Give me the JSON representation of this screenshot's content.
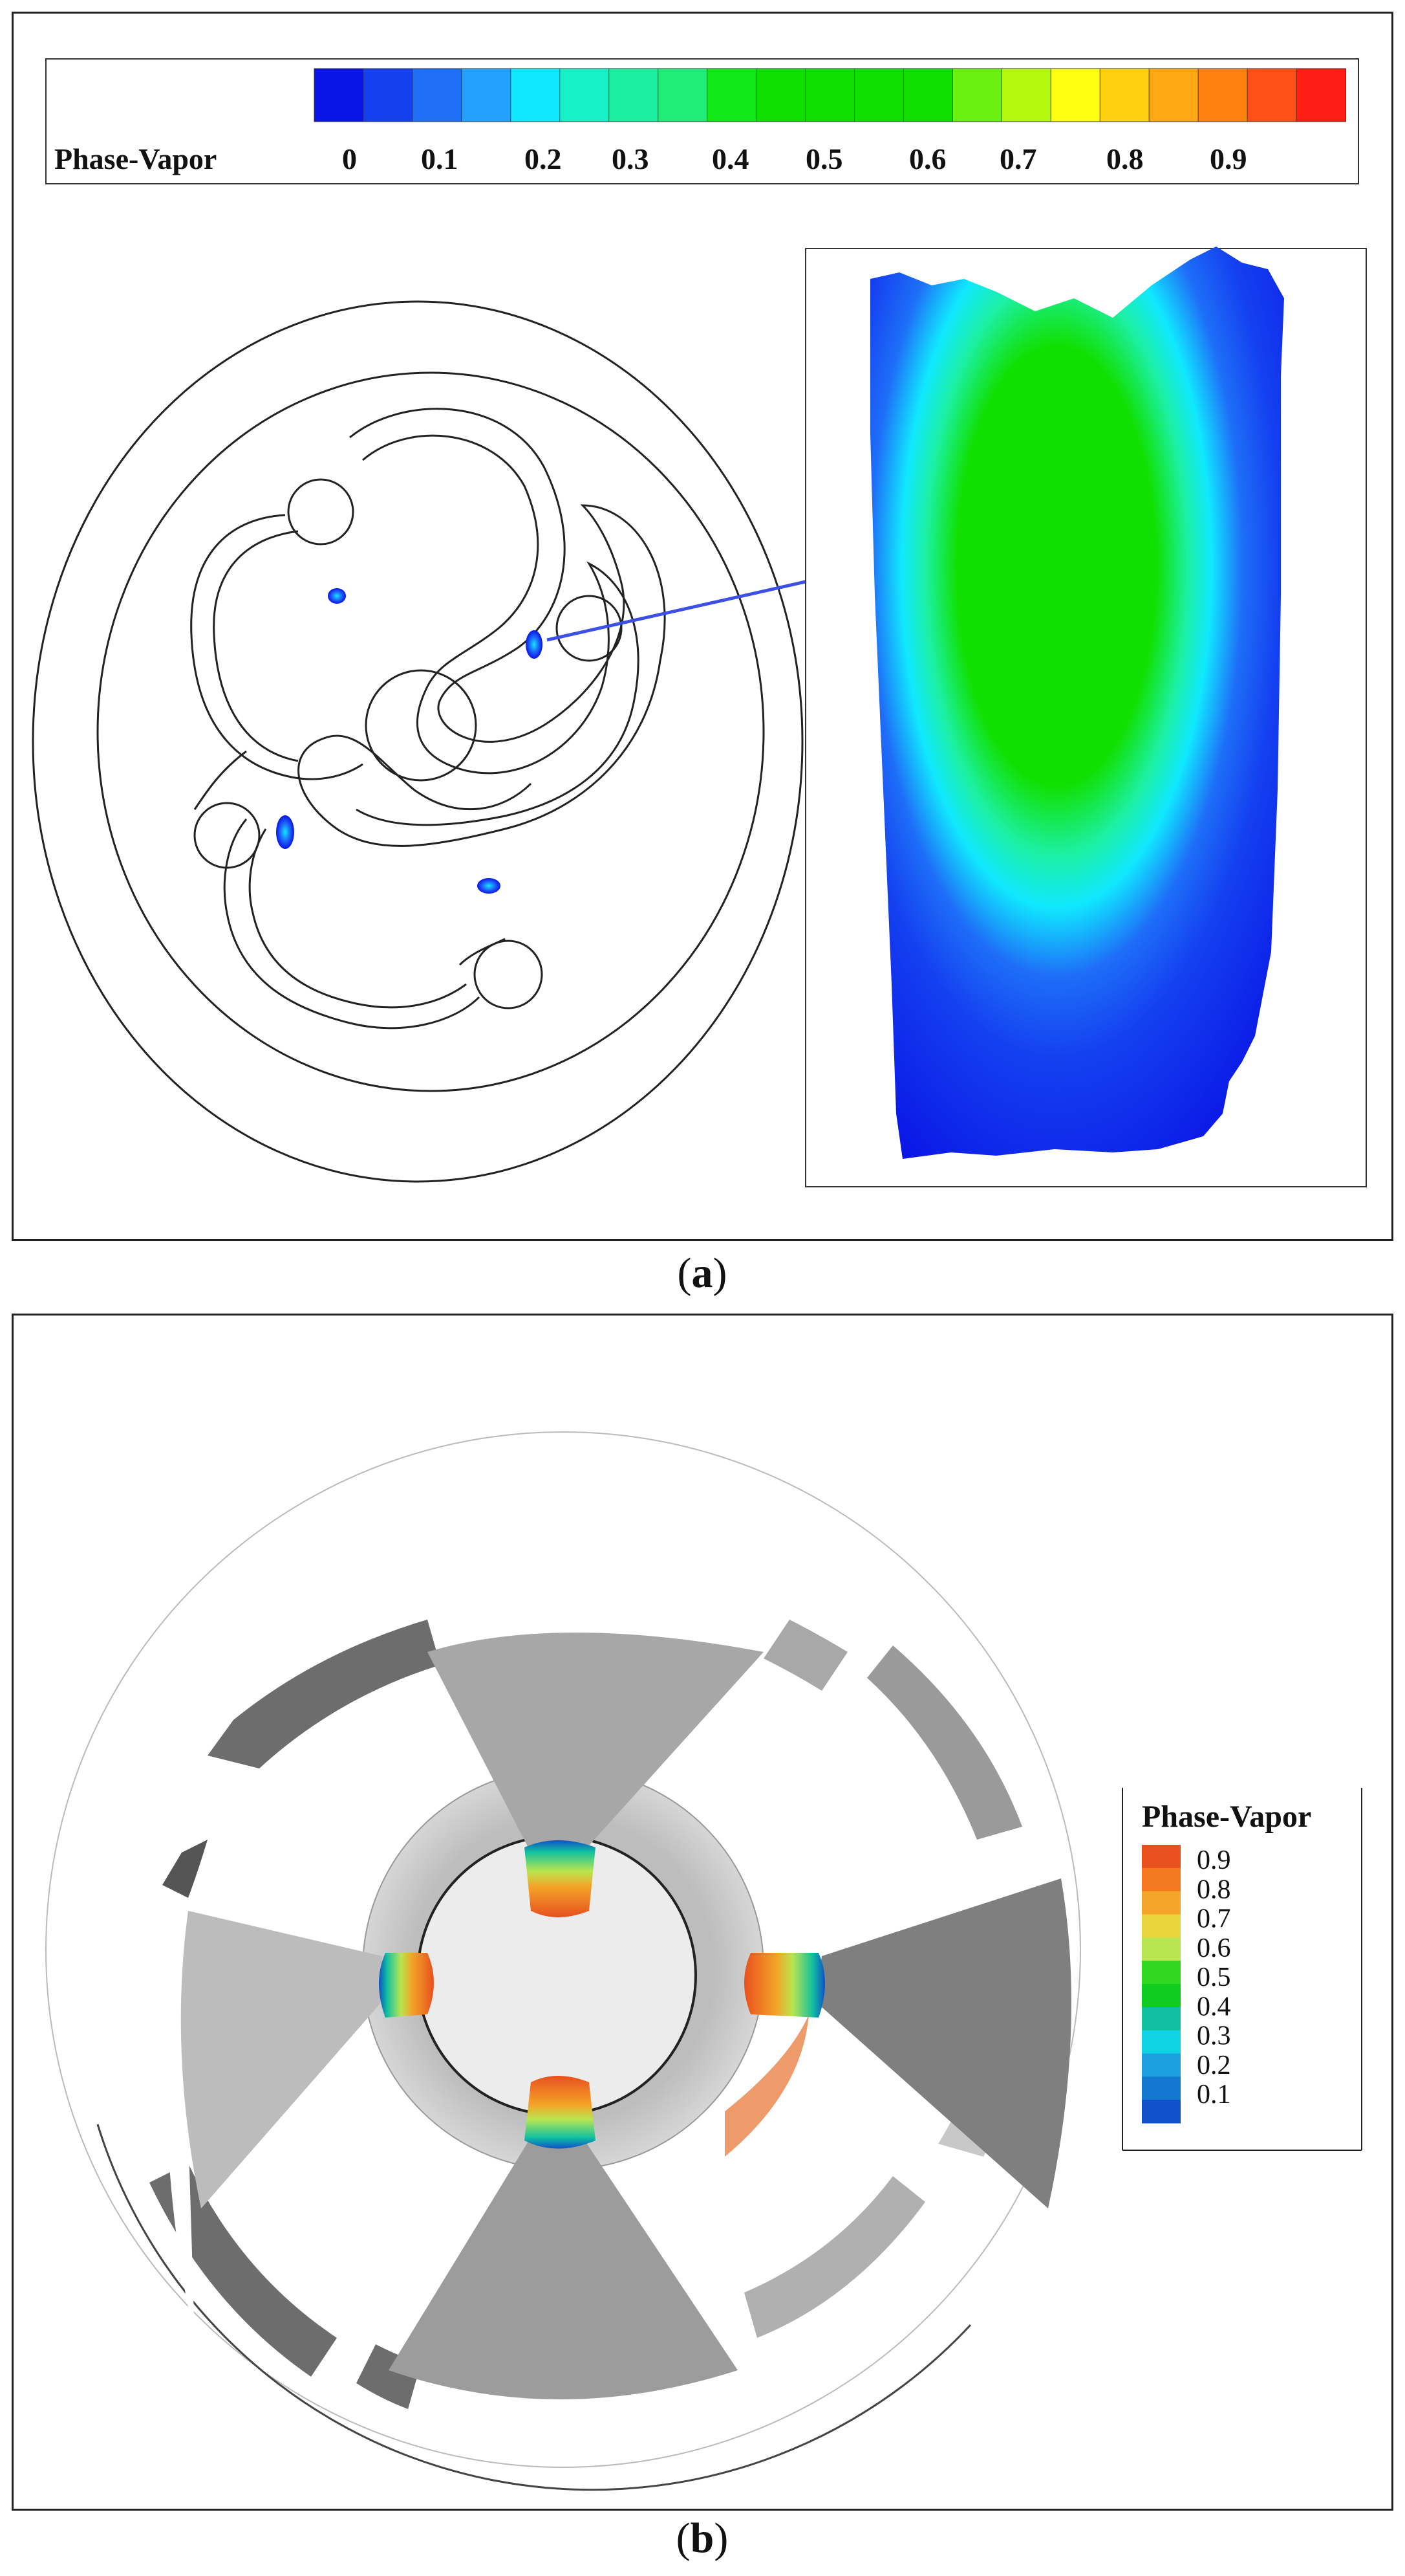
{
  "panel_a": {
    "caption_letter": "a",
    "legend": {
      "title": "Phase-Vapor",
      "tick_labels": [
        "0",
        "0.1",
        "0.2",
        "0.3",
        "0.4",
        "0.5",
        "0.6",
        "0.7",
        "0.8",
        "0.9"
      ],
      "colors": [
        "#0a14e6",
        "#1440f0",
        "#1e6ef8",
        "#24a0ff",
        "#10e8ff",
        "#18f0c8",
        "#1cf0a0",
        "#20ec78",
        "#10e818",
        "#10e000",
        "#10e000",
        "#10e000",
        "#10e000",
        "#6cf010",
        "#b4f810",
        "#ffff14",
        "#ffd010",
        "#ffa814",
        "#ff8210",
        "#ff5018",
        "#ff1e14"
      ]
    }
  },
  "panel_b": {
    "caption_letter": "b",
    "legend": {
      "title": "Phase-Vapor",
      "tick_labels": [
        "0.9",
        "0.8",
        "0.7",
        "0.6",
        "0.5",
        "0.4",
        "0.3",
        "0.2",
        "0.1"
      ],
      "colors": [
        "#e8501e",
        "#f47820",
        "#f4a428",
        "#e8d43c",
        "#b8e650",
        "#30d820",
        "#10cc20",
        "#10c0a0",
        "#10d4e4",
        "#1ca0e0",
        "#1478d0",
        "#1050c8"
      ]
    }
  }
}
